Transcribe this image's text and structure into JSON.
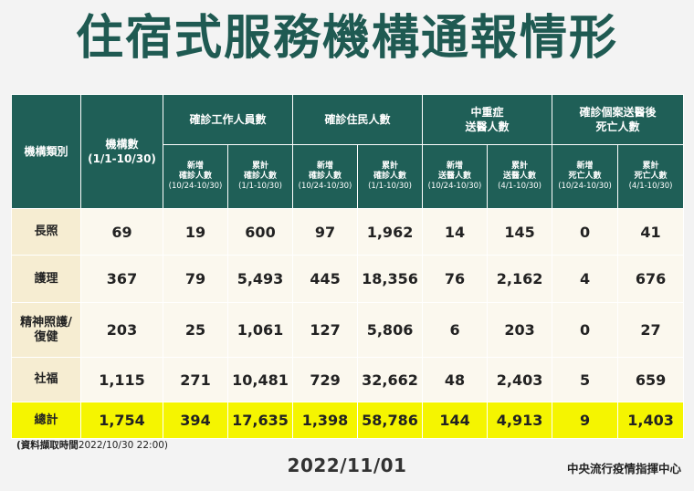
{
  "title": "住宿式服務機構通報情形",
  "table": {
    "header_category": "機構類別",
    "header_count_line1": "機構數",
    "header_count_line2": "(1/1-10/30)",
    "groups": [
      "確診工作人員數",
      "確診住民人數",
      "中重症\n送醫人數",
      "確診個案送醫後\n死亡人數"
    ],
    "subheaders": [
      {
        "l1": "新增",
        "l2": "確診人數",
        "l3": "(10/24-10/30)"
      },
      {
        "l1": "累計",
        "l2": "確診人數",
        "l3": "(1/1-10/30)"
      },
      {
        "l1": "新增",
        "l2": "確診人數",
        "l3": "(10/24-10/30)"
      },
      {
        "l1": "累計",
        "l2": "確診人數",
        "l3": "(1/1-10/30)"
      },
      {
        "l1": "新增",
        "l2": "送醫人數",
        "l3": "(10/24-10/30)"
      },
      {
        "l1": "累計",
        "l2": "送醫人數",
        "l3": "(4/1-10/30)"
      },
      {
        "l1": "新增",
        "l2": "死亡人數",
        "l3": "(10/24-10/30)"
      },
      {
        "l1": "累計",
        "l2": "死亡人數",
        "l3": "(4/1-10/30)"
      }
    ],
    "rows": [
      {
        "label": "長照",
        "values": [
          "69",
          "19",
          "600",
          "97",
          "1,962",
          "14",
          "145",
          "0",
          "41"
        ]
      },
      {
        "label": "護理",
        "values": [
          "367",
          "79",
          "5,493",
          "445",
          "18,356",
          "76",
          "2,162",
          "4",
          "676"
        ]
      },
      {
        "label": "精神照護/\n復健",
        "values": [
          "203",
          "25",
          "1,061",
          "127",
          "5,806",
          "6",
          "203",
          "0",
          "27"
        ]
      },
      {
        "label": "社福",
        "values": [
          "1,115",
          "271",
          "10,481",
          "729",
          "32,662",
          "48",
          "2,403",
          "5",
          "659"
        ]
      },
      {
        "label": "總計",
        "values": [
          "1,754",
          "394",
          "17,635",
          "1,398",
          "58,786",
          "144",
          "4,913",
          "9",
          "1,403"
        ]
      }
    ]
  },
  "footnote_bold": "(資料擷取時間",
  "footnote_rest": "2022/10/30  22:00)",
  "date": "2022/11/01",
  "org": "中央流行疫情指揮中心",
  "colors": {
    "header_bg": "#1f5f57",
    "title": "#1f5a52",
    "category_bg": "#f6edd2",
    "cell_bg": "#fbf8ee",
    "total_bg": "#f5f500"
  }
}
